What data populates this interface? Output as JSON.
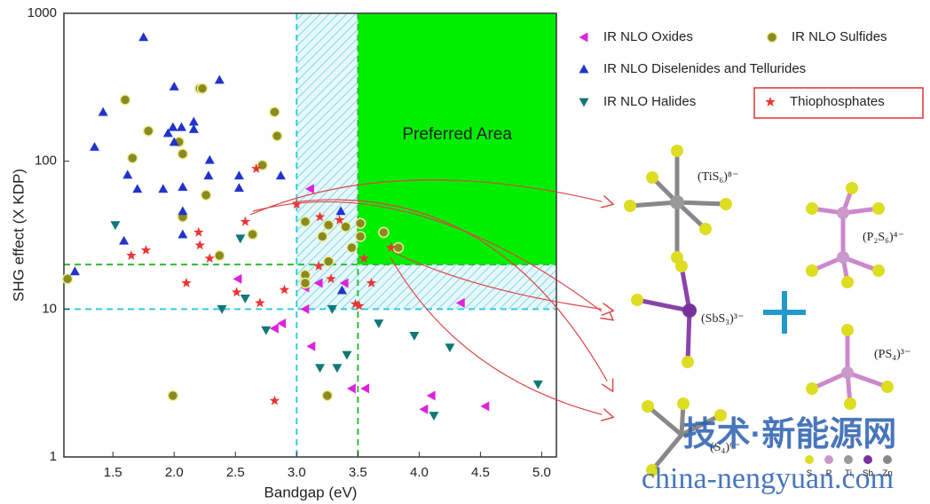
{
  "chart_data": {
    "type": "scatter",
    "xlabel": "Bandgap (eV)",
    "ylabel": "SHG effect (X KDP)",
    "xlim": [
      1.1,
      5.12
    ],
    "ylim": [
      1,
      1000
    ],
    "yscale": "log",
    "xticks": [
      1.5,
      {
        "value": 2,
        "label": "2.0"
      },
      2.5,
      {
        "value": 3,
        "label": "3.0"
      },
      3.5,
      {
        "value": 4,
        "label": "4.0"
      },
      4.5,
      {
        "value": 5,
        "label": "5.0"
      }
    ],
    "yticks": [
      1,
      10,
      100,
      1000
    ],
    "regions": [
      {
        "x0": 3.0,
        "y0": 10,
        "fill": "hatch",
        "color": "#55ccdd"
      },
      {
        "x0": 3.5,
        "y0": 20,
        "fill": "solid",
        "color": "#00ee00"
      }
    ],
    "reference_lines": [
      {
        "axis": "x",
        "value": 3.0,
        "color": "#33ccdd"
      },
      {
        "axis": "y",
        "value": 10,
        "color": "#33ccdd"
      },
      {
        "axis": "x",
        "value": 3.5,
        "color": "#33bb33"
      },
      {
        "axis": "y",
        "value": 20,
        "color": "#33bb33"
      }
    ],
    "annotation": "Preferred Area",
    "series": [
      {
        "name": "IR NLO Oxides",
        "color": "#dd22dd",
        "marker": "triangle-left",
        "x": [
          3.11,
          2.52,
          2.88,
          3.07,
          3.18,
          3.07,
          3.12,
          3.45,
          3.56,
          4.1,
          4.04,
          4.54,
          4.34,
          2.82,
          3.39
        ],
        "values": [
          65,
          16,
          8,
          14,
          15,
          10,
          5.6,
          2.9,
          2.9,
          2.6,
          2.1,
          2.2,
          11,
          7.4,
          15
        ]
      },
      {
        "name": "IR NLO Sulfides",
        "color": "#8a8a20",
        "marker": "circle",
        "x": [
          1.6,
          2.21,
          2.23,
          1.79,
          1.66,
          2.04,
          2.07,
          2.82,
          2.84,
          2.72,
          2.26,
          2.07,
          2.37,
          2.64,
          3.26,
          3.07,
          3.21,
          3.26,
          3.07,
          3.07,
          3.4,
          3.45,
          3.52,
          3.52,
          3.71,
          3.83,
          1.99,
          3.25,
          1.13
        ],
        "values": [
          260,
          310,
          310,
          160,
          105,
          135,
          112,
          215,
          148,
          94,
          59,
          42,
          23,
          32,
          37,
          39,
          31,
          21,
          17,
          15,
          36,
          26,
          31,
          38,
          33,
          26,
          2.6,
          2.6,
          16
        ]
      },
      {
        "name": "IR NLO Diselenides and Tellurides",
        "color": "#2233cc",
        "marker": "triangle-up",
        "x": [
          1.75,
          1.42,
          1.35,
          1.62,
          2.0,
          1.99,
          1.95,
          2.0,
          2.06,
          2.16,
          2.16,
          2.37,
          2.29,
          2.28,
          2.53,
          2.53,
          2.87,
          1.91,
          1.7,
          2.07,
          2.07,
          2.07,
          1.59,
          1.19,
          3.36,
          3.37
        ],
        "values": [
          690,
          215,
          125,
          81,
          320,
          170,
          155,
          135,
          170,
          185,
          165,
          355,
          102,
          80,
          80,
          66,
          80,
          65,
          65,
          67,
          46,
          32,
          29,
          18,
          46,
          13.4
        ]
      },
      {
        "name": "IR NLO Halides",
        "color": "#117777",
        "marker": "triangle-down",
        "x": [
          1.52,
          2.54,
          2.58,
          2.39,
          2.75,
          3.29,
          3.19,
          3.33,
          3.41,
          3.67,
          3.96,
          4.25,
          4.12,
          4.97
        ],
        "values": [
          37,
          30,
          11.8,
          10,
          7.2,
          10,
          4,
          4,
          4.9,
          8,
          6.6,
          5.5,
          1.9,
          3.1
        ]
      },
      {
        "name": "Thiophosphates",
        "color": "#ee3333",
        "marker": "star",
        "x": [
          2.67,
          2.58,
          1.65,
          2.1,
          2.2,
          2.21,
          2.29,
          2.51,
          2.7,
          2.9,
          3.0,
          3.19,
          3.18,
          3.28,
          3.61,
          3.51,
          3.48,
          3.35,
          3.55,
          3.77,
          2.82,
          1.77
        ],
        "values": [
          89,
          39,
          23,
          15,
          33,
          27,
          22,
          13,
          11,
          13.5,
          51,
          42,
          19.5,
          16,
          15,
          10.5,
          10.8,
          40,
          22,
          26,
          2.4,
          25
        ]
      }
    ]
  },
  "structures": [
    "(TiS₆)⁸⁻",
    "(P₂S₆)⁴⁻",
    "(SbS₃)³⁻",
    "(PS₄)³⁻",
    "(S₄)⁶⁻"
  ],
  "element_key": [
    "S",
    "P",
    "Ti",
    "Sb",
    "Zn"
  ],
  "watermark": {
    "cn": "技术·新能源网",
    "url": "china-nengyuan.com"
  }
}
